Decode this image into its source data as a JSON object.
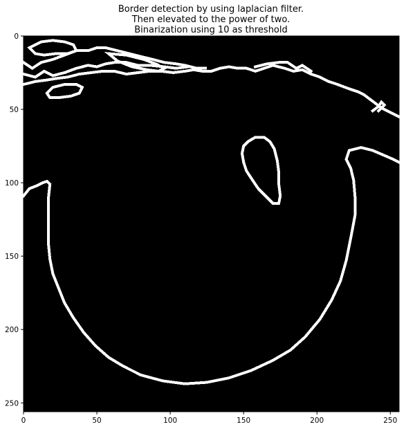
{
  "chart_data": {
    "type": "heatmap",
    "title": [
      "Border detection by using laplacian filter.",
      "Then elevated to the power of two.",
      "Binarization using 10 as threshold"
    ],
    "colormap": "gray",
    "image_size": [
      256,
      256
    ],
    "xlim": [
      0,
      256
    ],
    "ylim": [
      256,
      0
    ],
    "x_ticks": [
      0,
      50,
      100,
      150,
      200,
      250
    ],
    "y_ticks": [
      0,
      50,
      100,
      150,
      200,
      250
    ],
    "xlabel": "",
    "ylabel": "",
    "grid": false,
    "background_value": 0,
    "edge_value": 1,
    "colors": {
      "background": "#000000",
      "edge": "#ffffff",
      "page": "#ffffff"
    },
    "edge_contours": [
      {
        "name": "face-outline",
        "closed": false,
        "points": [
          [
            0,
            109
          ],
          [
            4,
            104
          ],
          [
            9,
            102
          ],
          [
            13,
            100
          ],
          [
            16,
            99
          ],
          [
            18,
            101
          ],
          [
            17,
            110
          ],
          [
            17,
            120
          ],
          [
            17,
            130
          ],
          [
            17,
            142
          ],
          [
            18,
            152
          ],
          [
            20,
            162
          ],
          [
            24,
            172
          ],
          [
            28,
            182
          ],
          [
            34,
            192
          ],
          [
            41,
            202
          ],
          [
            49,
            211
          ],
          [
            58,
            219
          ],
          [
            68,
            225
          ],
          [
            80,
            231
          ],
          [
            95,
            235
          ],
          [
            110,
            237
          ],
          [
            125,
            236
          ],
          [
            140,
            233
          ],
          [
            155,
            228
          ],
          [
            170,
            221
          ],
          [
            182,
            214
          ],
          [
            192,
            205
          ],
          [
            202,
            193
          ],
          [
            210,
            180
          ],
          [
            216,
            167
          ],
          [
            220,
            153
          ],
          [
            223,
            138
          ],
          [
            226,
            122
          ],
          [
            226,
            110
          ],
          [
            225,
            98
          ],
          [
            223,
            90
          ],
          [
            220,
            84
          ],
          [
            222,
            78
          ],
          [
            230,
            76
          ],
          [
            238,
            78
          ],
          [
            245,
            81
          ],
          [
            252,
            84
          ],
          [
            256,
            86
          ]
        ]
      },
      {
        "name": "hair-edge",
        "closed": false,
        "points": [
          [
            0,
            33
          ],
          [
            8,
            31
          ],
          [
            16,
            30
          ],
          [
            22,
            29
          ],
          [
            30,
            28
          ],
          [
            38,
            26
          ],
          [
            46,
            25
          ],
          [
            54,
            24
          ],
          [
            62,
            24
          ],
          [
            70,
            26
          ],
          [
            78,
            25
          ],
          [
            86,
            24
          ],
          [
            94,
            24
          ],
          [
            102,
            25
          ],
          [
            110,
            24
          ],
          [
            116,
            23
          ],
          [
            122,
            24
          ],
          [
            128,
            24
          ],
          [
            134,
            22
          ],
          [
            140,
            21
          ],
          [
            146,
            22
          ],
          [
            152,
            22
          ],
          [
            158,
            24
          ],
          [
            164,
            22
          ],
          [
            170,
            20
          ],
          [
            178,
            22
          ],
          [
            184,
            24
          ],
          [
            190,
            23
          ],
          [
            196,
            26
          ],
          [
            202,
            28
          ],
          [
            208,
            31
          ],
          [
            214,
            33
          ],
          [
            222,
            36
          ],
          [
            228,
            38
          ],
          [
            232,
            40
          ],
          [
            236,
            43
          ],
          [
            240,
            46
          ],
          [
            244,
            49
          ],
          [
            248,
            51
          ],
          [
            252,
            53
          ],
          [
            256,
            55
          ]
        ]
      },
      {
        "name": "hair-strand-1",
        "closed": false,
        "points": [
          [
            0,
            26
          ],
          [
            8,
            28
          ],
          [
            14,
            24
          ],
          [
            20,
            27
          ],
          [
            28,
            25
          ],
          [
            36,
            22
          ],
          [
            44,
            20
          ],
          [
            50,
            21
          ],
          [
            56,
            19
          ],
          [
            62,
            18
          ],
          [
            70,
            18
          ],
          [
            78,
            20
          ],
          [
            86,
            20
          ],
          [
            96,
            21
          ],
          [
            104,
            22
          ],
          [
            112,
            21
          ]
        ]
      },
      {
        "name": "hair-strand-2",
        "closed": false,
        "points": [
          [
            0,
            18
          ],
          [
            6,
            22
          ],
          [
            12,
            18
          ],
          [
            20,
            16
          ],
          [
            28,
            13
          ],
          [
            36,
            10
          ],
          [
            44,
            10
          ],
          [
            50,
            8
          ],
          [
            56,
            8
          ],
          [
            64,
            10
          ],
          [
            72,
            12
          ],
          [
            80,
            14
          ],
          [
            88,
            16
          ],
          [
            96,
            18
          ],
          [
            104,
            19
          ],
          [
            110,
            20
          ],
          [
            118,
            22
          ],
          [
            124,
            22
          ]
        ]
      },
      {
        "name": "hair-loop-1",
        "closed": true,
        "points": [
          [
            4,
            8
          ],
          [
            12,
            4
          ],
          [
            20,
            3
          ],
          [
            28,
            4
          ],
          [
            34,
            6
          ],
          [
            36,
            10
          ],
          [
            30,
            12
          ],
          [
            22,
            12
          ],
          [
            14,
            13
          ],
          [
            8,
            12
          ]
        ]
      },
      {
        "name": "hair-loop-2",
        "closed": true,
        "points": [
          [
            58,
            12
          ],
          [
            70,
            13
          ],
          [
            82,
            16
          ],
          [
            90,
            19
          ],
          [
            96,
            22
          ],
          [
            92,
            24
          ],
          [
            84,
            23
          ],
          [
            74,
            21
          ],
          [
            64,
            17
          ]
        ]
      },
      {
        "name": "small-loop-left",
        "closed": true,
        "points": [
          [
            16,
            39
          ],
          [
            20,
            35
          ],
          [
            28,
            33
          ],
          [
            36,
            33
          ],
          [
            40,
            35
          ],
          [
            38,
            39
          ],
          [
            32,
            41
          ],
          [
            24,
            42
          ],
          [
            18,
            42
          ]
        ]
      },
      {
        "name": "hair-strip-right",
        "closed": false,
        "points": [
          [
            158,
            21
          ],
          [
            166,
            19
          ],
          [
            174,
            18
          ],
          [
            180,
            18
          ],
          [
            186,
            22
          ],
          [
            190,
            20
          ],
          [
            196,
            24
          ]
        ]
      },
      {
        "name": "right-edge-flick",
        "closed": false,
        "points": [
          [
            238,
            51
          ],
          [
            242,
            48
          ],
          [
            244,
            45
          ],
          [
            246,
            47
          ],
          [
            242,
            51
          ]
        ]
      },
      {
        "name": "eye-loop",
        "closed": true,
        "points": [
          [
            153,
            72
          ],
          [
            158,
            69
          ],
          [
            164,
            69
          ],
          [
            168,
            72
          ],
          [
            171,
            77
          ],
          [
            173,
            85
          ],
          [
            174,
            93
          ],
          [
            174,
            101
          ],
          [
            175,
            109
          ],
          [
            174,
            114
          ],
          [
            170,
            114
          ],
          [
            165,
            109
          ],
          [
            160,
            104
          ],
          [
            156,
            98
          ],
          [
            152,
            92
          ],
          [
            150,
            86
          ],
          [
            149,
            80
          ],
          [
            150,
            75
          ]
        ]
      }
    ]
  }
}
